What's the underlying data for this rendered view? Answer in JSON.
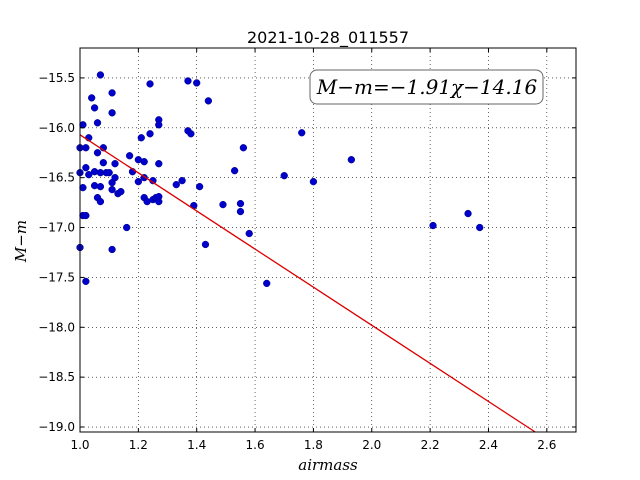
{
  "chart_data": {
    "type": "scatter",
    "title": "2021-10-28_011557",
    "xlabel": "airmass",
    "ylabel": "M−m",
    "xlim": [
      1.0,
      2.7
    ],
    "ylim": [
      -19.05,
      -15.2
    ],
    "y_inverted": true,
    "grid": true,
    "grid_style": "dotted",
    "x_ticks": [
      1.0,
      1.2,
      1.4,
      1.6,
      1.8,
      2.0,
      2.2,
      2.4,
      2.6
    ],
    "x_tick_labels": [
      "1.0",
      "1.2",
      "1.4",
      "1.6",
      "1.8",
      "2.0",
      "2.2",
      "2.4",
      "2.6"
    ],
    "y_ticks": [
      -15.5,
      -16.0,
      -16.5,
      -17.0,
      -17.5,
      -18.0,
      -18.5,
      -19.0
    ],
    "y_tick_labels": [
      "−15.5",
      "−16.0",
      "−16.5",
      "−17.0",
      "−17.5",
      "−18.0",
      "−18.5",
      "−19.0"
    ],
    "annotation": "M−m=−1.91χ−14.16",
    "annotation_position": "top-right",
    "fit": {
      "slope": -1.91,
      "intercept": -14.16
    },
    "colors": {
      "points": "#0000cc",
      "fit_line": "#dd0000"
    },
    "series": [
      {
        "points": [
          [
            1.0,
            -16.2
          ],
          [
            1.0,
            -16.45
          ],
          [
            1.0,
            -17.2
          ],
          [
            1.01,
            -15.97
          ],
          [
            1.01,
            -16.6
          ],
          [
            1.01,
            -16.88
          ],
          [
            1.02,
            -16.4
          ],
          [
            1.02,
            -16.88
          ],
          [
            1.02,
            -17.54
          ],
          [
            1.02,
            -16.2
          ],
          [
            1.03,
            -16.1
          ],
          [
            1.03,
            -16.47
          ],
          [
            1.04,
            -15.7
          ],
          [
            1.05,
            -16.58
          ],
          [
            1.05,
            -16.44
          ],
          [
            1.05,
            -15.8
          ],
          [
            1.06,
            -16.25
          ],
          [
            1.06,
            -15.95
          ],
          [
            1.06,
            -16.7
          ],
          [
            1.07,
            -15.47
          ],
          [
            1.07,
            -16.74
          ],
          [
            1.07,
            -16.45
          ],
          [
            1.07,
            -16.59
          ],
          [
            1.08,
            -16.2
          ],
          [
            1.08,
            -16.35
          ],
          [
            1.09,
            -16.45
          ],
          [
            1.1,
            -16.45
          ],
          [
            1.11,
            -15.85
          ],
          [
            1.11,
            -15.65
          ],
          [
            1.11,
            -16.55
          ],
          [
            1.11,
            -16.62
          ],
          [
            1.11,
            -17.22
          ],
          [
            1.12,
            -16.5
          ],
          [
            1.12,
            -16.36
          ],
          [
            1.13,
            -16.66
          ],
          [
            1.14,
            -16.64
          ],
          [
            1.16,
            -17.0
          ],
          [
            1.17,
            -16.28
          ],
          [
            1.18,
            -16.44
          ],
          [
            1.2,
            -16.54
          ],
          [
            1.2,
            -16.32
          ],
          [
            1.21,
            -16.1
          ],
          [
            1.22,
            -16.7
          ],
          [
            1.22,
            -16.5
          ],
          [
            1.22,
            -16.34
          ],
          [
            1.23,
            -16.74
          ],
          [
            1.24,
            -15.56
          ],
          [
            1.24,
            -16.06
          ],
          [
            1.25,
            -16.72
          ],
          [
            1.25,
            -16.53
          ],
          [
            1.26,
            -16.7
          ],
          [
            1.27,
            -15.92
          ],
          [
            1.27,
            -15.97
          ],
          [
            1.27,
            -16.36
          ],
          [
            1.27,
            -16.69
          ],
          [
            1.27,
            -16.74
          ],
          [
            1.33,
            -16.57
          ],
          [
            1.35,
            -16.53
          ],
          [
            1.37,
            -15.53
          ],
          [
            1.37,
            -16.03
          ],
          [
            1.38,
            -16.06
          ],
          [
            1.39,
            -16.78
          ],
          [
            1.4,
            -15.55
          ],
          [
            1.41,
            -16.59
          ],
          [
            1.43,
            -17.17
          ],
          [
            1.44,
            -15.73
          ],
          [
            1.49,
            -16.77
          ],
          [
            1.53,
            -16.43
          ],
          [
            1.55,
            -16.84
          ],
          [
            1.55,
            -16.76
          ],
          [
            1.56,
            -16.2
          ],
          [
            1.58,
            -17.06
          ],
          [
            1.64,
            -17.56
          ],
          [
            1.7,
            -16.48
          ],
          [
            1.76,
            -16.05
          ],
          [
            1.8,
            -16.54
          ],
          [
            1.93,
            -16.32
          ],
          [
            2.21,
            -16.98
          ],
          [
            2.33,
            -16.86
          ],
          [
            2.37,
            -17.0
          ]
        ]
      }
    ]
  }
}
